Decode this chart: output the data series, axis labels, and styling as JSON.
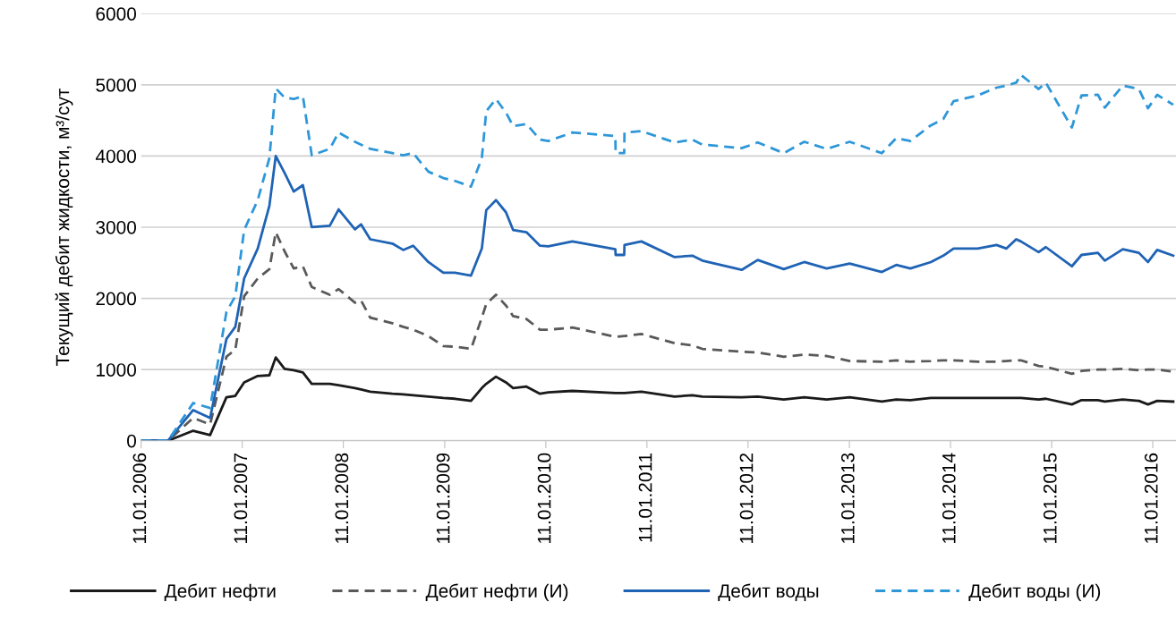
{
  "chart_data": {
    "type": "line",
    "ylabel": "Текущий дебит жидкости, м³/сут",
    "x": [
      "2006-01-11",
      "2006-04-18",
      "2006-07-18",
      "2006-09-17",
      "2006-11-15",
      "2006-12-17",
      "2007-01-18",
      "2007-03-08",
      "2007-04-19",
      "2007-05-12",
      "2007-06-13",
      "2007-07-16",
      "2007-08-18",
      "2007-09-19",
      "2007-11-23",
      "2007-12-25",
      "2008-02-22",
      "2008-03-15",
      "2008-04-17",
      "2008-07-06",
      "2008-08-14",
      "2008-09-19",
      "2008-11-13",
      "2009-01-06",
      "2009-02-17",
      "2009-04-16",
      "2009-05-25",
      "2009-06-10",
      "2009-07-15",
      "2009-08-20",
      "2009-09-15",
      "2009-11-02",
      "2009-12-21",
      "2010-01-20",
      "2010-04-17",
      "2010-09-19",
      "2010-09-20",
      "2010-10-21",
      "2010-10-22",
      "2010-12-22",
      "2011-04-21",
      "2011-06-24",
      "2011-07-30",
      "2011-12-19",
      "2012-02-15",
      "2012-05-19",
      "2012-08-01",
      "2012-10-21",
      "2013-01-12",
      "2013-05-08",
      "2013-06-29",
      "2013-08-19",
      "2013-11-01",
      "2013-12-16",
      "2014-01-22",
      "2014-04-19",
      "2014-06-26",
      "2014-08-01",
      "2014-09-05",
      "2014-09-22",
      "2014-11-25",
      "2014-12-21",
      "2015-03-25",
      "2015-04-29",
      "2015-06-27",
      "2015-07-22",
      "2015-09-25",
      "2015-11-22",
      "2015-12-25",
      "2016-01-27",
      "2016-03-25"
    ],
    "series": [
      {
        "name": "Дебит нефти",
        "color": "#1a1a1a",
        "line_style": "solid",
        "values": [
          0,
          0,
          140,
          80,
          610,
          630,
          820,
          910,
          920,
          1170,
          1010,
          990,
          960,
          800,
          800,
          780,
          740,
          720,
          690,
          660,
          650,
          640,
          620,
          600,
          590,
          560,
          740,
          800,
          900,
          820,
          740,
          760,
          660,
          680,
          700,
          670,
          670,
          670,
          670,
          690,
          620,
          640,
          620,
          610,
          620,
          580,
          610,
          580,
          610,
          550,
          580,
          570,
          600,
          600,
          600,
          600,
          600,
          600,
          600,
          600,
          580,
          590,
          510,
          570,
          570,
          550,
          580,
          560,
          510,
          560,
          550
        ]
      },
      {
        "name": "Дебит нефти (И)",
        "color": "#595959",
        "line_style": "dashed",
        "values": [
          0,
          0,
          320,
          230,
          1180,
          1280,
          2030,
          2280,
          2410,
          2930,
          2660,
          2420,
          2450,
          2160,
          2050,
          2130,
          1940,
          1970,
          1730,
          1650,
          1600,
          1560,
          1470,
          1330,
          1320,
          1290,
          1730,
          1920,
          2050,
          1900,
          1750,
          1710,
          1560,
          1560,
          1590,
          1460,
          1460,
          1470,
          1470,
          1500,
          1370,
          1340,
          1290,
          1250,
          1240,
          1180,
          1210,
          1190,
          1120,
          1110,
          1130,
          1110,
          1120,
          1130,
          1130,
          1110,
          1110,
          1120,
          1130,
          1130,
          1050,
          1040,
          940,
          980,
          1000,
          1000,
          1010,
          990,
          1000,
          1000,
          970
        ]
      },
      {
        "name": "Дебит воды",
        "color": "#1f63b5",
        "line_style": "solid",
        "values": [
          0,
          0,
          430,
          320,
          1430,
          1600,
          2280,
          2700,
          3300,
          4000,
          3760,
          3500,
          3590,
          3000,
          3020,
          3250,
          2970,
          3040,
          2830,
          2770,
          2680,
          2740,
          2510,
          2360,
          2360,
          2320,
          2700,
          3240,
          3380,
          3210,
          2960,
          2930,
          2740,
          2730,
          2800,
          2690,
          2610,
          2610,
          2750,
          2800,
          2580,
          2600,
          2530,
          2400,
          2540,
          2410,
          2510,
          2420,
          2490,
          2370,
          2470,
          2420,
          2510,
          2600,
          2700,
          2700,
          2750,
          2700,
          2830,
          2800,
          2650,
          2720,
          2450,
          2610,
          2640,
          2530,
          2690,
          2640,
          2510,
          2680,
          2600
        ]
      },
      {
        "name": "Дебит воды (И)",
        "color": "#2e97d8",
        "line_style": "dashed",
        "values": [
          0,
          0,
          530,
          460,
          1810,
          2030,
          2960,
          3380,
          3970,
          4950,
          4820,
          4800,
          4840,
          4010,
          4100,
          4330,
          4200,
          4160,
          4100,
          4040,
          4010,
          4040,
          3780,
          3690,
          3650,
          3570,
          3970,
          4630,
          4800,
          4610,
          4420,
          4450,
          4230,
          4210,
          4330,
          4280,
          4040,
          4040,
          4330,
          4350,
          4190,
          4230,
          4160,
          4110,
          4190,
          4040,
          4200,
          4100,
          4200,
          4040,
          4250,
          4210,
          4430,
          4520,
          4770,
          4850,
          4960,
          4990,
          5030,
          5140,
          4940,
          5030,
          4400,
          4850,
          4860,
          4680,
          4990,
          4940,
          4670,
          4860,
          4720
        ]
      }
    ],
    "xlim": [
      "2006-01-11",
      "2016-04-04"
    ],
    "xticks": [
      {
        "value": "2006-01-11",
        "label": "11.01.2006"
      },
      {
        "value": "2007-01-11",
        "label": "11.01.2007"
      },
      {
        "value": "2008-01-11",
        "label": "11.01.2008"
      },
      {
        "value": "2009-01-11",
        "label": "11.01.2009"
      },
      {
        "value": "2010-01-11",
        "label": "11.01.2010"
      },
      {
        "value": "2011-01-11",
        "label": "11.01.2011"
      },
      {
        "value": "2012-01-11",
        "label": "11.01.2012"
      },
      {
        "value": "2013-01-11",
        "label": "11.01.2013"
      },
      {
        "value": "2014-01-11",
        "label": "11.01.2014"
      },
      {
        "value": "2015-01-11",
        "label": "11.01.2015"
      },
      {
        "value": "2016-01-11",
        "label": "11.01.2016"
      }
    ],
    "ylim": [
      0,
      6000
    ],
    "yticks": [
      0,
      1000,
      2000,
      3000,
      4000,
      5000,
      6000
    ],
    "grid": "y",
    "legend": "bottom",
    "marker": "none"
  }
}
